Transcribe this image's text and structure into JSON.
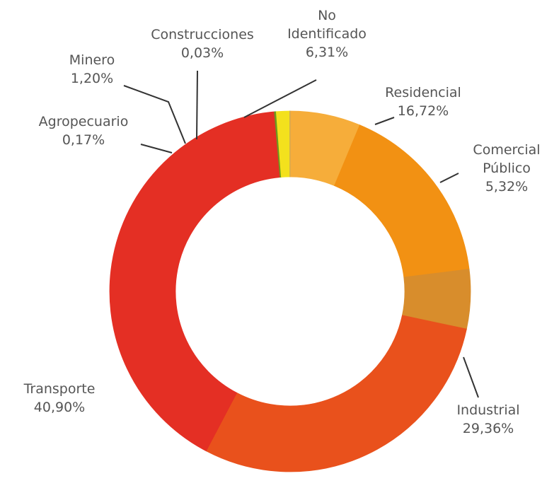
{
  "chart_data": {
    "type": "pie",
    "donut": true,
    "title": "",
    "legend": "none",
    "slices": [
      {
        "name": "No Identificado",
        "label_lines": [
          "No",
          "Identificado"
        ],
        "value": 6.31,
        "value_label": "6,31%",
        "color": "#f6ad3a"
      },
      {
        "name": "Residencial",
        "label_lines": [
          "Residencial"
        ],
        "value": 16.72,
        "value_label": "16,72%",
        "color": "#f29113"
      },
      {
        "name": "Comercial Público",
        "label_lines": [
          "Comercial",
          "Público"
        ],
        "value": 5.32,
        "value_label": "5,32%",
        "color": "#d88d2c"
      },
      {
        "name": "Industrial",
        "label_lines": [
          "Industrial"
        ],
        "value": 29.36,
        "value_label": "29,36%",
        "color": "#e9511c"
      },
      {
        "name": "Transporte",
        "label_lines": [
          "Transporte"
        ],
        "value": 40.9,
        "value_label": "40,90%",
        "color": "#e42f24"
      },
      {
        "name": "Agropecuario",
        "label_lines": [
          "Agropecuario"
        ],
        "value": 0.17,
        "value_label": "0,17%",
        "color": "#6c9a1f"
      },
      {
        "name": "Minero",
        "label_lines": [
          "Minero"
        ],
        "value": 1.2,
        "value_label": "1,20%",
        "color": "#f3e11d"
      },
      {
        "name": "Construcciones",
        "label_lines": [
          "Construcciones"
        ],
        "value": 0.03,
        "value_label": "0,03%",
        "color": "#c9a45a"
      }
    ]
  }
}
